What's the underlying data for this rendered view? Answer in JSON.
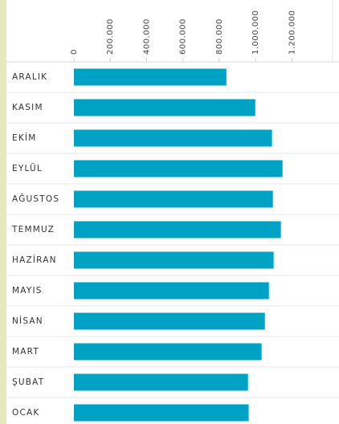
{
  "chart_data": {
    "type": "bar",
    "orientation": "horizontal",
    "categories": [
      "ARALIK",
      "KASIM",
      "EKİM",
      "EYLÜL",
      "AĞUSTOS",
      "TEMMUZ",
      "HAZİRAN",
      "MAYIS",
      "NİSAN",
      "MART",
      "ŞUBAT",
      "OCAK"
    ],
    "values": [
      839000,
      998000,
      1090000,
      1148000,
      1095000,
      1139000,
      1099000,
      1073000,
      1051000,
      1033000,
      958000,
      962000
    ],
    "color": "#00a2c4",
    "xlim": [
      0,
      1450000
    ],
    "xticks": [
      0,
      {
        "value": 200000,
        "label": "200.000"
      },
      {
        "value": 400000,
        "label": "400.000"
      },
      {
        "value": 600000,
        "label": "600.000"
      },
      {
        "value": 800000,
        "label": "800.000"
      },
      {
        "value": 1000000,
        "label": "1.000.000"
      },
      {
        "value": 1200000,
        "label": "1.200.000"
      }
    ]
  }
}
